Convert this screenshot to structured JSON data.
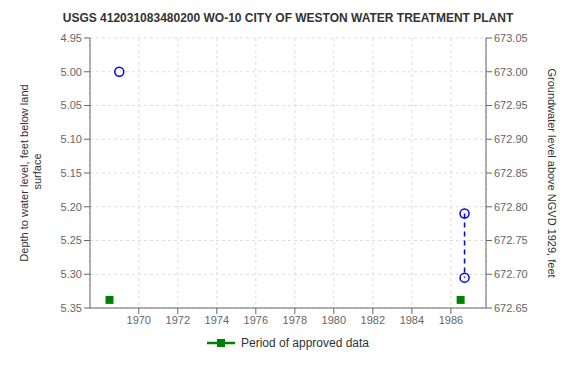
{
  "chart_data": {
    "type": "scatter",
    "title": "USGS 412031083480200 WO-10 CITY OF WESTON WATER TREATMENT PLANT",
    "ylabel": "Depth to water level, feet below land\n surface",
    "y2label": "Groundwater level above NGVD 1929, feet",
    "xlim": [
      1967.5,
      1987.8
    ],
    "xticks": [
      1970,
      1972,
      1974,
      1976,
      1978,
      1980,
      1982,
      1984,
      1986
    ],
    "ylim": [
      5.35,
      4.95
    ],
    "yticks": [
      4.95,
      {
        "value": 5.0,
        "label": "5.00"
      },
      5.05,
      {
        "value": 5.1,
        "label": "5.10"
      },
      5.15,
      {
        "value": 5.2,
        "label": "5.20"
      },
      5.25,
      {
        "value": 5.3,
        "label": "5.30"
      },
      5.35
    ],
    "y2lim": [
      672.65,
      673.05
    ],
    "y2ticks": [
      672.65,
      {
        "value": 672.7,
        "label": "672.70"
      },
      672.75,
      {
        "value": 672.8,
        "label": "672.80"
      },
      672.85,
      {
        "value": 672.9,
        "label": "672.90"
      },
      672.95,
      {
        "value": 673.0,
        "label": "673.00"
      },
      673.05
    ],
    "grid": true,
    "legend": "bottom",
    "series": [
      {
        "type": "scatter",
        "color": "blue",
        "marker": "circle-open",
        "x": [
          1969.0,
          1986.7,
          1986.7
        ],
        "values": [
          5.0,
          5.21,
          5.305
        ]
      },
      {
        "type": "line",
        "color": "blue",
        "marker": "none",
        "line_style": "dashed",
        "x": [
          1986.7,
          1986.7
        ],
        "values": [
          5.21,
          5.305
        ]
      },
      {
        "type": "scatter",
        "name": "Period of approved data",
        "color": "#008000",
        "marker": "square",
        "x": [
          1968.5,
          1986.5
        ],
        "values": [
          5.338,
          5.338
        ]
      }
    ]
  }
}
